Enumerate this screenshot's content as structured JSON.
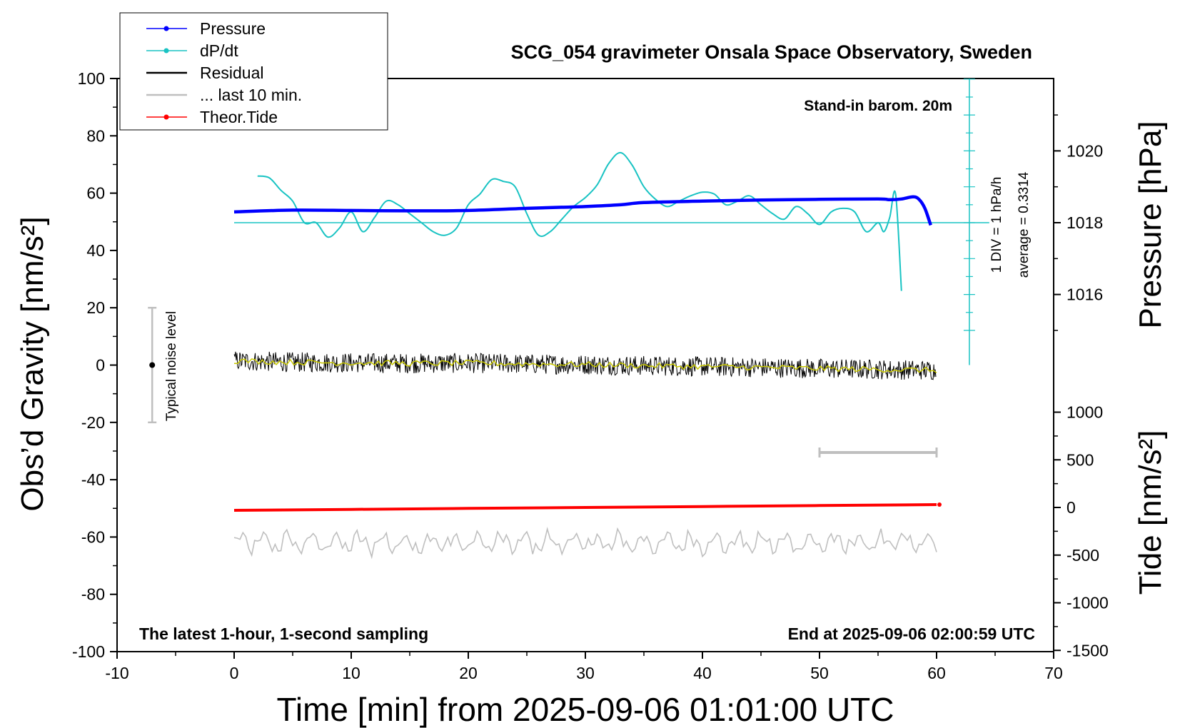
{
  "title": "SCG_054 gravimeter Onsala Space Observatory, Sweden",
  "annotations": {
    "barom": "Stand-in barom. 20m",
    "latest": "The latest 1-hour, 1-second sampling",
    "end": "End at 2025-09-06 02:00:59 UTC",
    "div": "1 DIV = 1 hPa/h",
    "average": "average = 0.3314",
    "noise": "Typical noise level"
  },
  "legend": [
    {
      "label": "Pressure",
      "color": "#0000ff",
      "marker": true
    },
    {
      "label": "dP/dt",
      "color": "#19c3c3",
      "marker": true
    },
    {
      "label": "Residual",
      "color": "#000000",
      "marker": false
    },
    {
      "label": "... last 10 min.",
      "color": "#bfbfbf",
      "marker": false
    },
    {
      "label": "Theor.Tide",
      "color": "#ff0000",
      "marker": true
    }
  ],
  "axes": {
    "xlabel": "Time [min] from 2025-09-06 01:01:00 UTC",
    "ylabel_left": "Obs’d Gravity [nm/s²]",
    "ylabel_pressure": "Pressure [hPa]",
    "ylabel_tide": "Tide [nm/s²]",
    "xlim": [
      -10,
      70
    ],
    "ylim": [
      -100,
      100
    ],
    "x_ticks": [
      "-10",
      "0",
      "10",
      "20",
      "30",
      "40",
      "50",
      "60",
      "70"
    ],
    "y_ticks": [
      "100",
      "80",
      "60",
      "40",
      "20",
      "0",
      "-20",
      "-40",
      "-60",
      "-80",
      "-100"
    ],
    "pressure_ticks": [
      "1020",
      "1018",
      "1016"
    ],
    "tide_ticks": [
      "1000",
      "500",
      "0",
      "-500",
      "-1000",
      "-1500"
    ]
  },
  "chart_data": {
    "type": "line",
    "xlim": [
      -10,
      70
    ],
    "ylim": [
      -100,
      100
    ],
    "series": [
      {
        "name": "Pressure",
        "axis": "pressure_hPa",
        "color": "#0000ff",
        "x": [
          0,
          5,
          10,
          15,
          20,
          25,
          28,
          30,
          33,
          35,
          40,
          45,
          50,
          55,
          56,
          57,
          58,
          58.5,
          59,
          59.5
        ],
        "y": [
          1018.3,
          1018.35,
          1018.34,
          1018.33,
          1018.34,
          1018.4,
          1018.43,
          1018.45,
          1018.5,
          1018.56,
          1018.6,
          1018.63,
          1018.65,
          1018.66,
          1018.64,
          1018.66,
          1018.72,
          1018.65,
          1018.4,
          1017.93
        ]
      },
      {
        "name": "dP/dt",
        "axis": "dpdt_hPa_per_h",
        "color": "#19c3c3",
        "x": [
          2,
          3,
          4,
          5,
          6,
          7,
          8,
          9,
          10,
          11,
          12,
          13,
          14,
          15,
          16,
          17,
          18,
          19,
          20,
          21,
          22,
          23,
          24,
          25,
          26,
          27,
          28,
          29,
          30,
          31,
          32,
          33,
          34,
          35,
          36,
          37,
          38,
          39,
          40,
          41,
          42,
          43,
          44,
          45,
          46,
          47,
          48,
          49,
          50,
          51,
          52,
          53,
          54,
          55,
          55.5,
          56,
          56.5,
          57
        ],
        "y": [
          2.6,
          2.5,
          1.8,
          1.2,
          0.0,
          0.0,
          -0.8,
          -0.3,
          0.6,
          -0.5,
          0.3,
          1.2,
          1.0,
          0.5,
          0.0,
          -0.5,
          -0.7,
          -0.3,
          1.0,
          1.6,
          2.4,
          2.3,
          2.0,
          0.5,
          -0.7,
          -0.5,
          0.2,
          0.9,
          1.4,
          2.1,
          3.3,
          3.9,
          3.2,
          2.0,
          1.3,
          0.9,
          1.2,
          1.5,
          1.7,
          1.6,
          1.0,
          1.2,
          1.5,
          1.0,
          0.5,
          0.2,
          0.9,
          0.5,
          -0.1,
          0.6,
          0.8,
          0.6,
          -0.5,
          0.0,
          -0.5,
          0.3,
          1.6,
          -3.8
        ]
      },
      {
        "name": "Residual",
        "axis": "gravity_nm_s2",
        "color": "#000000",
        "x": [
          0,
          5,
          10,
          15,
          20,
          25,
          30,
          35,
          40,
          45,
          50,
          55,
          60
        ],
        "y": [
          1.5,
          1.0,
          0.8,
          0.6,
          0.7,
          0.4,
          0.2,
          -0.2,
          -0.5,
          -0.8,
          -1.2,
          -1.5,
          -1.8
        ]
      },
      {
        "name": "Theor.Tide",
        "axis": "tide_nm_s2",
        "color": "#ff0000",
        "x": [
          0,
          10,
          20,
          30,
          40,
          50,
          60
        ],
        "y": [
          -30,
          -20,
          -10,
          0,
          10,
          20,
          30
        ]
      }
    ],
    "filtered_residual_color": "#c8c800",
    "last_10_min_trace_color": "#bfbfbf",
    "last_10_min_bar": {
      "x_start": 50,
      "x_end": 60
    },
    "noise_bar": {
      "x": -7,
      "y_min": -20,
      "y_max": 20
    },
    "dpdt_zero_pressure": 1018,
    "dpdt_scale": "1 DIV = 1 hPa/h",
    "dpdt_average": 0.3314
  }
}
